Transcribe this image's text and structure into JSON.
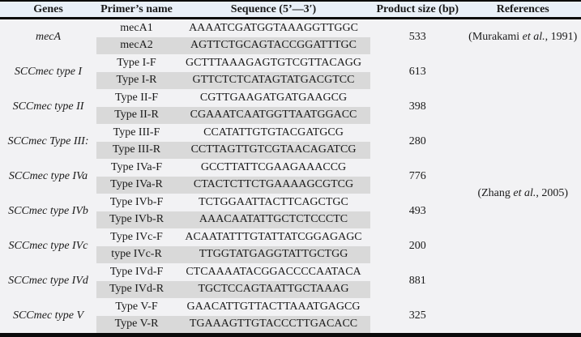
{
  "colors": {
    "body_bg": "#f2f2f4",
    "header_bg": "#e9f0f8",
    "stripe": "#d9d9d9",
    "rule": "#0b0b0b"
  },
  "table": {
    "columns": [
      "Genes",
      "Primer’s name",
      "Sequence (5’—3′)",
      "Product size (bp)",
      "References"
    ],
    "groups": [
      {
        "gene": "mecA",
        "product": "533",
        "primers": [
          {
            "name": "mecA1",
            "seq": "AAAATCGATGGTAAAGGTTGGC"
          },
          {
            "name": "mecA2",
            "seq": "AGTTCTGCAGTACCGGATTTGC"
          }
        ]
      },
      {
        "gene": "SCCmec type I",
        "product": "613",
        "primers": [
          {
            "name": "Type I-F",
            "seq": "GCTTTAAAGAGTGTCGTTACAGG"
          },
          {
            "name": "Type I-R",
            "seq": "GTTCTCTCATAGTATGACGTCC"
          }
        ]
      },
      {
        "gene": "SCCmec type II",
        "product": "398",
        "primers": [
          {
            "name": "Type II-F",
            "seq": "CGTTGAAGATGATGAAGCG"
          },
          {
            "name": "Type II-R",
            "seq": "CGAAATCAATGGTTAATGGACC"
          }
        ]
      },
      {
        "gene": "SCCmec Type III:",
        "product": "280",
        "primers": [
          {
            "name": "Type III-F",
            "seq": "CCATATTGTGTACGATGCG"
          },
          {
            "name": "Type III-R",
            "seq": "CCTTAGTTGTCGTAACAGATCG"
          }
        ]
      },
      {
        "gene": "SCCmec type IVa",
        "product": "776",
        "primers": [
          {
            "name": "Type IVa-F",
            "seq": "GCCTTATTCGAAGAAACCG"
          },
          {
            "name": "Type IVa-R",
            "seq": "CTACTCTTCTGAAAAGCGTCG"
          }
        ]
      },
      {
        "gene": "SCCmec type IVb",
        "product": "493",
        "primers": [
          {
            "name": "Type IVb-F",
            "seq": "TCTGGAATTACTTCAGCTGC"
          },
          {
            "name": "Type IVb-R",
            "seq": "AAACAATATTGCTCTCCCTC"
          }
        ]
      },
      {
        "gene": "SCCmec type IVc",
        "product": "200",
        "primers": [
          {
            "name": "Type IVc-F",
            "seq": "ACAATATTTGTATTATCGGAGAGC"
          },
          {
            "name": "type IVc-R",
            "seq": "TTGGTATGAGGTATTGCTGG"
          }
        ]
      },
      {
        "gene": "SCCmec type IVd",
        "product": "881",
        "primers": [
          {
            "name": "Type IVd-F",
            "seq": "CTCAAAATACGGACCCCAATACA"
          },
          {
            "name": "Type IVd-R",
            "seq": "TGCTCCAGTAATTGCTAAAG"
          }
        ]
      },
      {
        "gene": "SCCmec type V",
        "product": "325",
        "primers": [
          {
            "name": "Type V-F",
            "seq": "GAACATTGTTACTTAAATGAGCG"
          },
          {
            "name": "Type V-R",
            "seq": "TGAAAGTTGTACCCTTGACACC"
          }
        ]
      }
    ],
    "references": [
      {
        "before": "(Murakami ",
        "etal": "et al.",
        "after": ", 1991)",
        "group_start": 0,
        "group_span": 1
      },
      {
        "before": "(Zhang ",
        "etal": "et al.",
        "after": ", 2005)",
        "group_start": 1,
        "group_span": 8
      }
    ]
  }
}
